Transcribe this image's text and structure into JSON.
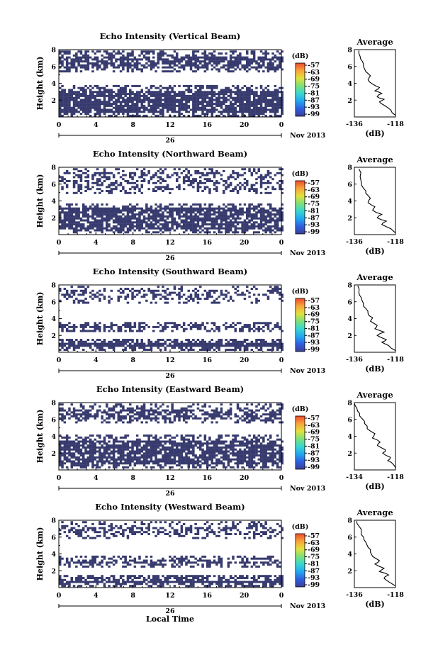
{
  "chart_data": [
    {
      "type": "heatmap",
      "title": "Echo Intensity (Vertical Beam)",
      "ylabel": "Height (km)",
      "date_label": "26",
      "month_label": "Nov 2013",
      "xlim": [
        0,
        24
      ],
      "ylim": [
        0,
        8
      ],
      "xticks": [
        "0",
        "4",
        "8",
        "12",
        "16",
        "20",
        "0"
      ],
      "yticks": [
        "2",
        "4",
        "6",
        "8"
      ],
      "colorbar": {
        "unit": "(dB)",
        "ticks": [
          "-57",
          "-63",
          "-69",
          "-75",
          "-81",
          "-87",
          "-93",
          "-99"
        ]
      },
      "bands": [
        [
          0.2,
          3.8,
          0.85
        ],
        [
          5.4,
          7.9,
          0.75
        ]
      ],
      "profile": {
        "title": "Average",
        "xlabel": "(dB)",
        "xlim": [
          -136,
          -118
        ],
        "xticks": [
          "-136",
          "-118"
        ],
        "ylim": [
          0,
          8
        ],
        "yticks": [
          "2",
          "4",
          "6",
          "8"
        ],
        "points": [
          [
            -118,
            0.2
          ],
          [
            -120,
            0.8
          ],
          [
            -123,
            1.4
          ],
          [
            -125,
            1.8
          ],
          [
            -123,
            2.1
          ],
          [
            -126,
            2.4
          ],
          [
            -124,
            2.8
          ],
          [
            -127,
            3.1
          ],
          [
            -125,
            3.5
          ],
          [
            -128,
            3.9
          ],
          [
            -130,
            4.4
          ],
          [
            -129,
            4.9
          ],
          [
            -131,
            5.4
          ],
          [
            -132,
            6.0
          ],
          [
            -132.5,
            6.6
          ],
          [
            -133.5,
            7.2
          ],
          [
            -134,
            7.9
          ]
        ]
      }
    },
    {
      "type": "heatmap",
      "title": "Echo Intensity (Northward Beam)",
      "ylabel": "Height (km)",
      "date_label": "26",
      "month_label": "Nov 2013",
      "xlim": [
        0,
        24
      ],
      "ylim": [
        0,
        8
      ],
      "xticks": [
        "0",
        "4",
        "8",
        "12",
        "16",
        "20",
        "0"
      ],
      "yticks": [
        "2",
        "4",
        "6",
        "8"
      ],
      "colorbar": {
        "unit": "(dB)",
        "ticks": [
          "-57",
          "-63",
          "-69",
          "-75",
          "-81",
          "-87",
          "-93",
          "-99"
        ]
      },
      "bands": [
        [
          0.2,
          3.7,
          0.8
        ],
        [
          5.0,
          7.9,
          0.4
        ]
      ],
      "profile": {
        "title": "Average",
        "xlabel": "(dB)",
        "xlim": [
          -136,
          -118
        ],
        "xticks": [
          "-136",
          "-118"
        ],
        "ylim": [
          0,
          8
        ],
        "yticks": [
          "2",
          "4",
          "6",
          "8"
        ],
        "points": [
          [
            -118,
            0.2
          ],
          [
            -120,
            0.7
          ],
          [
            -124,
            1.2
          ],
          [
            -122,
            1.6
          ],
          [
            -126,
            2.0
          ],
          [
            -124,
            2.4
          ],
          [
            -128,
            2.9
          ],
          [
            -127,
            3.3
          ],
          [
            -130,
            3.8
          ],
          [
            -129,
            4.3
          ],
          [
            -131,
            4.9
          ],
          [
            -132,
            5.5
          ],
          [
            -133,
            6.2
          ],
          [
            -133.5,
            6.9
          ],
          [
            -134,
            7.8
          ]
        ]
      }
    },
    {
      "type": "heatmap",
      "title": "Echo Intensity (Southward Beam)",
      "ylabel": "Height (km)",
      "date_label": "26",
      "month_label": "Nov 2013",
      "xlim": [
        0,
        24
      ],
      "ylim": [
        0,
        8
      ],
      "xticks": [
        "0",
        "4",
        "8",
        "12",
        "16",
        "20",
        "0"
      ],
      "yticks": [
        "2",
        "4",
        "6",
        "8"
      ],
      "colorbar": {
        "unit": "(dB)",
        "ticks": [
          "-57",
          "-63",
          "-69",
          "-75",
          "-81",
          "-87",
          "-93",
          "-99"
        ]
      },
      "bands": [
        [
          0.2,
          1.6,
          0.95
        ],
        [
          2.5,
          3.6,
          0.7
        ],
        [
          5.8,
          7.9,
          0.35
        ]
      ],
      "profile": {
        "title": "Average",
        "xlabel": "(dB)",
        "xlim": [
          -136,
          -118
        ],
        "xticks": [
          "-136",
          "-118"
        ],
        "ylim": [
          0,
          8
        ],
        "yticks": [
          "2",
          "4",
          "6",
          "8"
        ],
        "points": [
          [
            -118,
            0.2
          ],
          [
            -121,
            0.8
          ],
          [
            -124,
            1.2
          ],
          [
            -122,
            1.5
          ],
          [
            -126,
            2.0
          ],
          [
            -123,
            2.4
          ],
          [
            -127,
            2.8
          ],
          [
            -126,
            3.2
          ],
          [
            -129,
            3.7
          ],
          [
            -128,
            4.1
          ],
          [
            -130,
            4.6
          ],
          [
            -131,
            5.2
          ],
          [
            -132,
            5.8
          ],
          [
            -133,
            6.5
          ],
          [
            -134,
            7.1
          ],
          [
            -134.5,
            7.9
          ]
        ]
      }
    },
    {
      "type": "heatmap",
      "title": "Echo Intensity (Eastward Beam)",
      "ylabel": "Height (km)",
      "date_label": "26",
      "month_label": "Nov 2013",
      "xlim": [
        0,
        24
      ],
      "ylim": [
        0,
        8
      ],
      "xticks": [
        "0",
        "4",
        "8",
        "12",
        "16",
        "20",
        "0"
      ],
      "yticks": [
        "2",
        "4",
        "6",
        "8"
      ],
      "colorbar": {
        "unit": "(dB)",
        "ticks": [
          "-57",
          "-63",
          "-69",
          "-75",
          "-81",
          "-87",
          "-93",
          "-99"
        ]
      },
      "bands": [
        [
          0.2,
          4.2,
          0.8
        ],
        [
          5.6,
          7.9,
          0.6
        ]
      ],
      "profile": {
        "title": "Average",
        "xlabel": "(dB)",
        "xlim": [
          -134,
          -118
        ],
        "xticks": [
          "-134",
          "-118"
        ],
        "ylim": [
          0,
          8
        ],
        "yticks": [
          "2",
          "4",
          "6",
          "8"
        ],
        "points": [
          [
            -118,
            0.2
          ],
          [
            -119,
            0.7
          ],
          [
            -121,
            1.1
          ],
          [
            -120,
            1.5
          ],
          [
            -123,
            2.0
          ],
          [
            -122,
            2.4
          ],
          [
            -125,
            2.9
          ],
          [
            -124,
            3.3
          ],
          [
            -127,
            3.8
          ],
          [
            -126,
            4.3
          ],
          [
            -129,
            4.9
          ],
          [
            -130,
            5.5
          ],
          [
            -131,
            6.1
          ],
          [
            -132,
            6.7
          ],
          [
            -133,
            7.3
          ],
          [
            -134,
            7.9
          ]
        ]
      }
    },
    {
      "type": "heatmap",
      "title": "Echo Intensity (Westward Beam)",
      "ylabel": "Height (km)",
      "xlabel": "Local Time",
      "date_label": "26",
      "month_label": "Nov 2013",
      "xlim": [
        0,
        24
      ],
      "ylim": [
        0,
        8
      ],
      "xticks": [
        "0",
        "4",
        "8",
        "12",
        "16",
        "20",
        "0"
      ],
      "yticks": [
        "2",
        "4",
        "6",
        "8"
      ],
      "colorbar": {
        "unit": "(dB)",
        "ticks": [
          "-57",
          "-63",
          "-69",
          "-75",
          "-81",
          "-87",
          "-93",
          "-99"
        ]
      },
      "bands": [
        [
          0.2,
          1.5,
          0.95
        ],
        [
          2.4,
          3.8,
          0.7
        ],
        [
          5.8,
          7.9,
          0.45
        ]
      ],
      "profile": {
        "title": "Average",
        "xlabel": "(dB)",
        "xlim": [
          -136,
          -118
        ],
        "xticks": [
          "-136",
          "-118"
        ],
        "ylim": [
          0,
          8
        ],
        "yticks": [
          "2",
          "4",
          "6",
          "8"
        ],
        "points": [
          [
            -118,
            0.2
          ],
          [
            -121,
            0.7
          ],
          [
            -123,
            1.1
          ],
          [
            -121,
            1.5
          ],
          [
            -125,
            1.9
          ],
          [
            -123,
            2.3
          ],
          [
            -127,
            2.8
          ],
          [
            -125,
            3.2
          ],
          [
            -128,
            3.7
          ],
          [
            -129,
            4.2
          ],
          [
            -130,
            4.8
          ],
          [
            -131,
            5.4
          ],
          [
            -132,
            6.0
          ],
          [
            -133,
            6.6
          ],
          [
            -134,
            7.3
          ],
          [
            -135,
            7.9
          ]
        ]
      }
    }
  ],
  "colors": {
    "echo": "#373b6e",
    "colorbar_stops": [
      "#3a3e96",
      "#2f5fe0",
      "#22a8f0",
      "#39d7d0",
      "#7ee07a",
      "#e2e13c",
      "#f8a43a",
      "#ee4a2e"
    ]
  }
}
